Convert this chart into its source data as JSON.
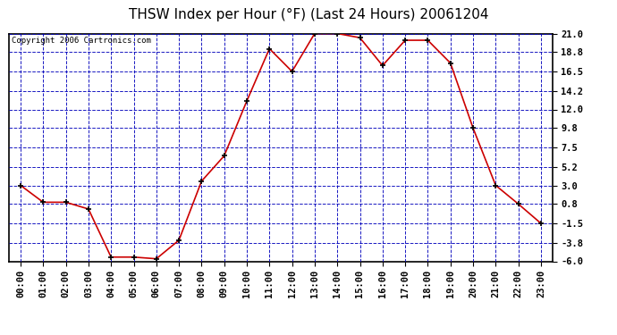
{
  "title": "THSW Index per Hour (°F) (Last 24 Hours) 20061204",
  "copyright": "Copyright 2006 Cartronics.com",
  "hours": [
    "00:00",
    "01:00",
    "02:00",
    "03:00",
    "04:00",
    "05:00",
    "06:00",
    "07:00",
    "08:00",
    "09:00",
    "10:00",
    "11:00",
    "12:00",
    "13:00",
    "14:00",
    "15:00",
    "16:00",
    "17:00",
    "18:00",
    "19:00",
    "20:00",
    "21:00",
    "22:00",
    "23:00"
  ],
  "values": [
    3.0,
    1.0,
    1.0,
    0.2,
    -5.5,
    -5.5,
    -5.7,
    -3.5,
    3.5,
    6.5,
    13.0,
    19.2,
    16.5,
    21.0,
    21.0,
    20.5,
    17.2,
    20.2,
    20.2,
    17.5,
    9.8,
    3.0,
    0.8,
    -1.5
  ],
  "ylim": [
    -6.0,
    21.0
  ],
  "yticks": [
    21.0,
    18.8,
    16.5,
    14.2,
    12.0,
    9.8,
    7.5,
    5.2,
    3.0,
    0.8,
    -1.5,
    -3.8,
    -6.0
  ],
  "line_color": "#cc0000",
  "marker_color": "#000000",
  "bg_color": "#ffffff",
  "plot_bg_color": "#ffffff",
  "grid_color": "#0000bb",
  "title_fontsize": 11,
  "tick_fontsize": 7.5,
  "copyright_fontsize": 6.5
}
